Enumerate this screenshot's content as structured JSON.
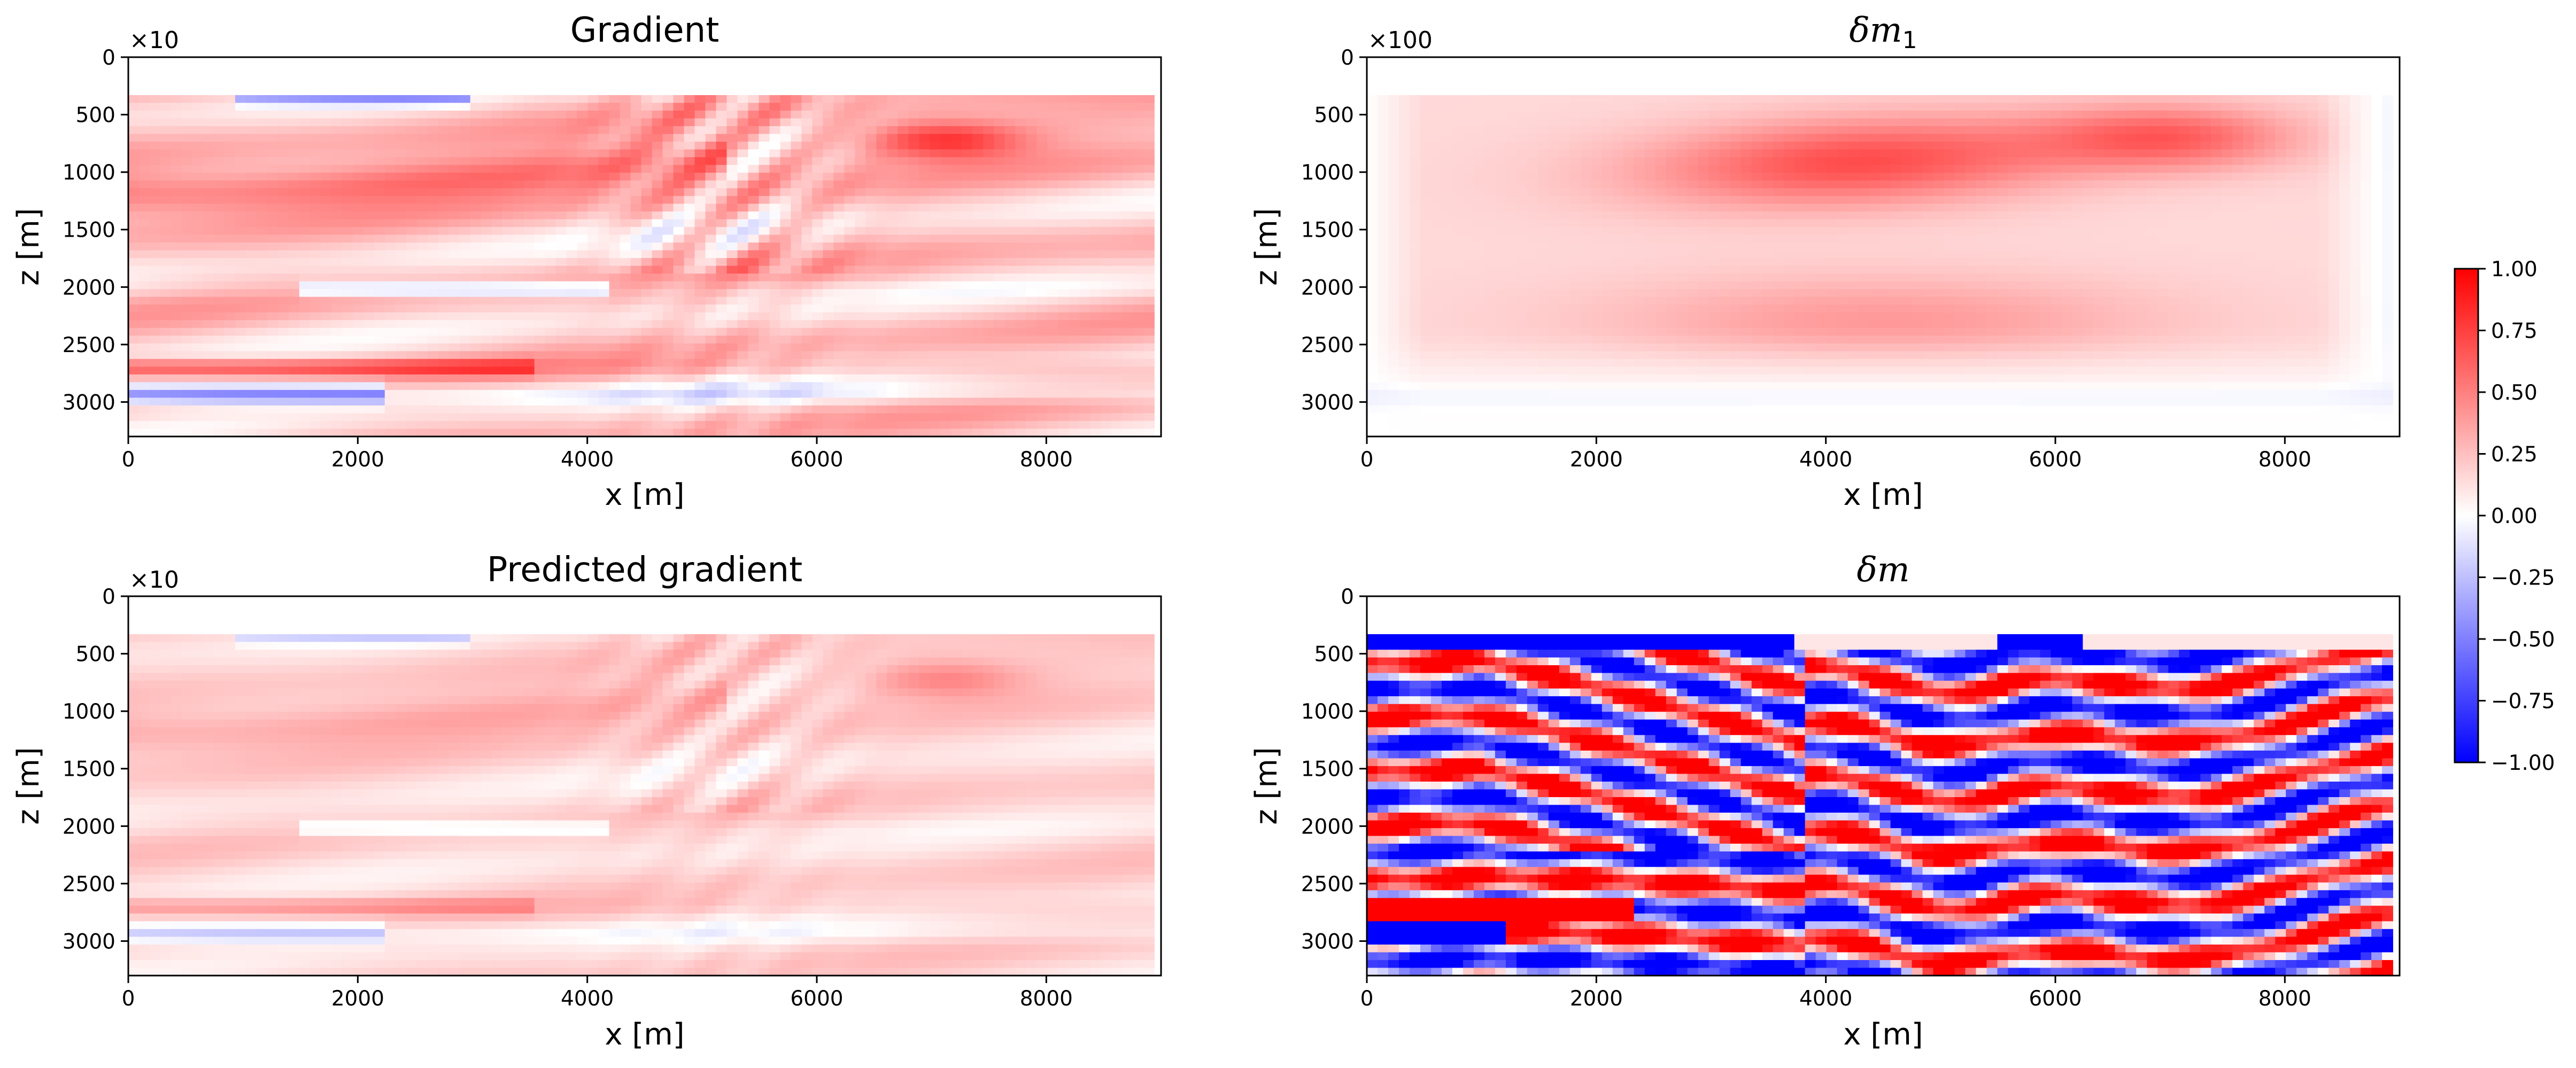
{
  "figure": {
    "colors": {
      "negative": "#0000ff",
      "neutral": "#ffffff",
      "positive": "#ff0000",
      "frame": "#000000"
    }
  },
  "chart_data": [
    {
      "type": "heatmap",
      "title": "Gradient",
      "xlabel": "x [m]",
      "ylabel": "z [m]",
      "offset_text": "×10",
      "xlim": [
        0,
        9000
      ],
      "ylim": [
        3300,
        0
      ],
      "x_ticks": [
        "0",
        "2000",
        "4000",
        "6000",
        "8000"
      ],
      "y_ticks": [
        "0",
        "500",
        "1000",
        "1500",
        "2000",
        "2500",
        "3000"
      ],
      "colormap": "bwr",
      "value_range": [
        -1,
        1
      ],
      "pattern": "gradient"
    },
    {
      "type": "heatmap",
      "title_base": "δm",
      "title_sub": "1",
      "xlabel": "x [m]",
      "ylabel": "z [m]",
      "offset_text": "×100",
      "xlim": [
        0,
        9000
      ],
      "ylim": [
        3300,
        0
      ],
      "x_ticks": [
        "0",
        "2000",
        "4000",
        "6000",
        "8000"
      ],
      "y_ticks": [
        "0",
        "500",
        "1000",
        "1500",
        "2000",
        "2500",
        "3000"
      ],
      "colormap": "bwr",
      "value_range": [
        -1,
        1
      ],
      "pattern": "smooth"
    },
    {
      "type": "heatmap",
      "title": "Predicted gradient",
      "xlabel": "x [m]",
      "ylabel": "z [m]",
      "offset_text": "×10",
      "xlim": [
        0,
        9000
      ],
      "ylim": [
        3300,
        0
      ],
      "x_ticks": [
        "0",
        "2000",
        "4000",
        "6000",
        "8000"
      ],
      "y_ticks": [
        "0",
        "500",
        "1000",
        "1500",
        "2000",
        "2500",
        "3000"
      ],
      "colormap": "bwr",
      "value_range": [
        -1,
        1
      ],
      "pattern": "predicted"
    },
    {
      "type": "heatmap",
      "title_base": "δm",
      "xlabel": "x [m]",
      "ylabel": "z [m]",
      "xlim": [
        0,
        9000
      ],
      "ylim": [
        3300,
        0
      ],
      "x_ticks": [
        "0",
        "2000",
        "4000",
        "6000",
        "8000"
      ],
      "y_ticks": [
        "0",
        "500",
        "1000",
        "1500",
        "2000",
        "2500",
        "3000"
      ],
      "colormap": "bwr",
      "value_range": [
        -1,
        1
      ],
      "pattern": "reflectivity"
    }
  ],
  "colorbar": {
    "range": [
      -1,
      1
    ],
    "ticks": [
      "1.00",
      "0.75",
      "0.50",
      "0.25",
      "0.00",
      "−0.25",
      "−0.50",
      "−0.75",
      "−1.00"
    ],
    "tick_values": [
      1,
      0.75,
      0.5,
      0.25,
      0,
      -0.25,
      -0.5,
      -0.75,
      -1
    ]
  }
}
